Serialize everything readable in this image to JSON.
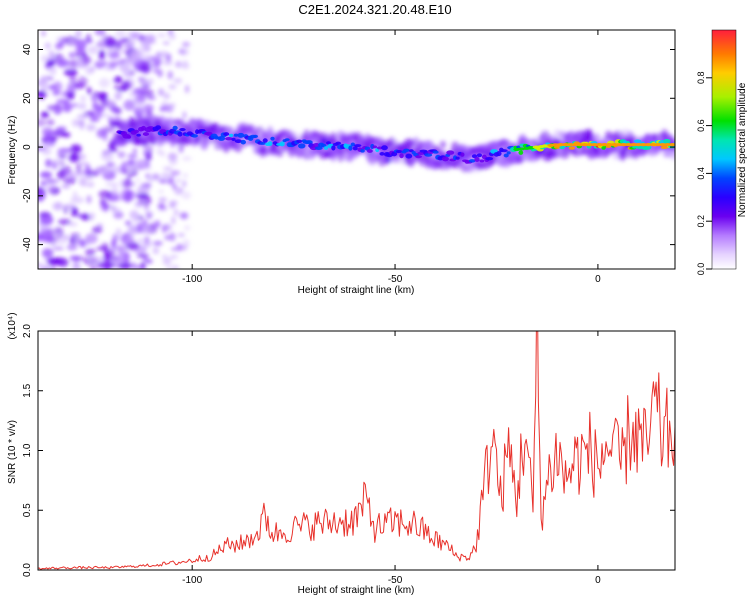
{
  "title": "C2E1.2024.321.20.48.E10",
  "colors": {
    "snr_line": "#e8322c",
    "axis": "#000000",
    "background": "#ffffff",
    "colormap": [
      "#f4f0ff",
      "#d2b6ff",
      "#9a55ff",
      "#6a00f0",
      "#2a00ff",
      "#0044ff",
      "#00c8ff",
      "#00e6b0",
      "#00e000",
      "#d8f000",
      "#ff9900",
      "#ff2a1a"
    ]
  },
  "chart_data": [
    {
      "type": "heatmap",
      "title": "C2E1.2024.321.20.48.E10",
      "xlabel": "Height of straight line (km)",
      "ylabel": "Frequency (Hz)",
      "xlim": [
        -138,
        19
      ],
      "ylim": [
        -50,
        48
      ],
      "x_ticks": [
        -100,
        -50,
        0
      ],
      "y_ticks": [
        -40,
        -20,
        0,
        20,
        40
      ],
      "colorbar": {
        "label": "Normalized spectral amplitude",
        "range": [
          0.0,
          1.0
        ],
        "ticks": [
          "0.0",
          "0.2",
          "0.4",
          "0.6",
          "0.8"
        ]
      },
      "ridge": {
        "description_points_x": [
          -118,
          -110,
          -100,
          -90,
          -80,
          -70,
          -60,
          -50,
          -40,
          -30,
          -25,
          -20,
          -10,
          0,
          10,
          19
        ],
        "description_points_y": [
          5,
          7,
          6,
          4,
          2,
          1,
          0,
          -2,
          -3,
          -5,
          -3,
          -1,
          1,
          1,
          1,
          1
        ],
        "peak_intensity": [
          0.35,
          0.45,
          0.5,
          0.5,
          0.55,
          0.5,
          0.5,
          0.5,
          0.45,
          0.4,
          0.5,
          0.7,
          0.9,
          0.95,
          0.95,
          0.95
        ]
      }
    },
    {
      "type": "line",
      "xlabel": "Height of straight line (km)",
      "ylabel": "SNR (10 * v/v)",
      "scale_label": "(x10⁴)",
      "xlim": [
        -138,
        19
      ],
      "ylim": [
        0,
        2.0
      ],
      "x_ticks": [
        -100,
        -50,
        0
      ],
      "y_ticks": [
        "0.0",
        "0.5",
        "1.0",
        "1.5",
        "2.0"
      ],
      "series": [
        {
          "x": [
            -138,
            -130,
            -120,
            -110,
            -104,
            -100,
            -95,
            -92,
            -88,
            -84,
            -82,
            -80,
            -75,
            -70,
            -65,
            -60,
            -57,
            -55,
            -50,
            -45,
            -40,
            -37,
            -35,
            -32,
            -30,
            -28,
            -26,
            -24,
            -22,
            -20,
            -18,
            -16,
            -15,
            -14,
            -12,
            -10,
            -8,
            -6,
            -4,
            -2,
            0,
            2,
            4,
            6,
            8,
            10,
            12,
            14,
            16,
            19
          ],
          "y": [
            0.01,
            0.02,
            0.02,
            0.04,
            0.06,
            0.08,
            0.12,
            0.2,
            0.22,
            0.3,
            0.45,
            0.3,
            0.35,
            0.38,
            0.4,
            0.42,
            0.58,
            0.35,
            0.4,
            0.38,
            0.25,
            0.2,
            0.12,
            0.1,
            0.2,
            0.7,
            1.15,
            0.6,
            1.0,
            0.6,
            1.2,
            0.5,
            2.0,
            0.45,
            0.8,
            1.0,
            0.75,
            0.9,
            0.95,
            1.0,
            0.85,
            1.05,
            0.95,
            0.9,
            1.2,
            1.1,
            1.0,
            1.35,
            1.1,
            1.2
          ]
        }
      ]
    }
  ]
}
